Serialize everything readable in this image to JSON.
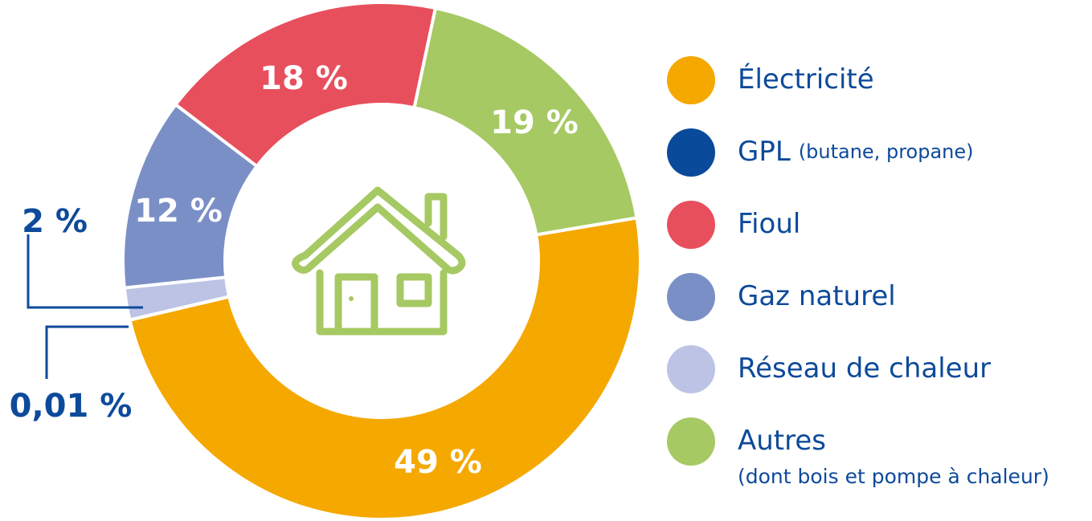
{
  "chart_data": {
    "type": "donut",
    "categories": [
      "Électricité",
      "GPL",
      "Réseau de chaleur",
      "Gaz naturel",
      "Fioul",
      "Autres"
    ],
    "category_notes": [
      null,
      "(butane, propane)",
      null,
      null,
      null,
      "(dont bois et pompe à chaleur)"
    ],
    "values": [
      49,
      0.01,
      2,
      12,
      18,
      19
    ],
    "value_labels": [
      "49 %",
      "0,01 %",
      "2 %",
      "12 %",
      "18 %",
      "19 %"
    ],
    "colors": [
      "#f5a800",
      "#0a4a9b",
      "#bcc3e4",
      "#7b8fc7",
      "#e84f5d",
      "#a6c963"
    ]
  }
}
